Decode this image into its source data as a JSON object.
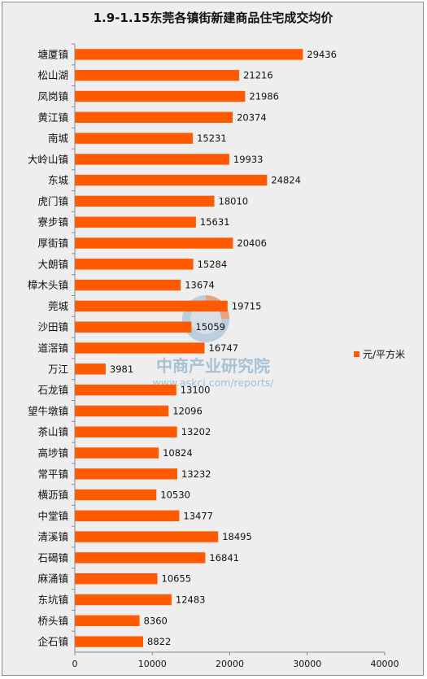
{
  "chart_data": {
    "type": "bar",
    "orientation": "horizontal",
    "title": "1.9-1.15东莞各镇街新建商品住宅成交均价",
    "categories": [
      "塘厦镇",
      "松山湖",
      "凤岗镇",
      "黄江镇",
      "南城",
      "大岭山镇",
      "东城",
      "虎门镇",
      "寮步镇",
      "厚街镇",
      "大朗镇",
      "樟木头镇",
      "莞城",
      "沙田镇",
      "道滘镇",
      "万江",
      "石龙镇",
      "望牛墩镇",
      "茶山镇",
      "高埗镇",
      "常平镇",
      "横沥镇",
      "中堂镇",
      "清溪镇",
      "石碣镇",
      "麻涌镇",
      "东坑镇",
      "桥头镇",
      "企石镇"
    ],
    "series": [
      {
        "name": "元/平方米",
        "color": "#ff5a00",
        "values": [
          29436,
          21216,
          21986,
          20374,
          15231,
          19933,
          24824,
          18010,
          15631,
          20406,
          15284,
          13674,
          19715,
          15059,
          16747,
          3981,
          13100,
          12096,
          13202,
          10824,
          13232,
          10530,
          13477,
          18495,
          16841,
          10655,
          12483,
          8360,
          8822
        ]
      }
    ],
    "xlim": [
      0,
      40000
    ],
    "xticks": [
      0,
      10000,
      20000,
      30000,
      40000
    ],
    "legend_position": "right",
    "grid": false
  },
  "watermark": {
    "name": "中商产业研究院",
    "url": "www.askci.com/reports/"
  }
}
